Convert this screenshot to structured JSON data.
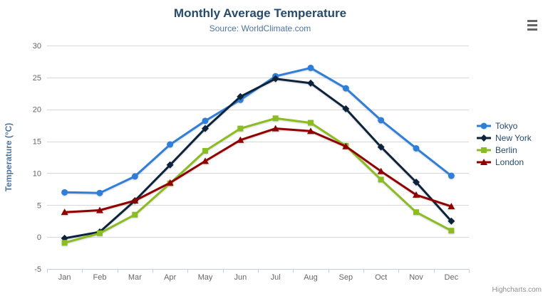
{
  "credits": "Highcharts.com",
  "icons": {
    "export_menu": "hamburger"
  },
  "chart_data": {
    "type": "line",
    "title": "Monthly Average Temperature",
    "subtitle": "Source: WorldClimate.com",
    "xlabel": "",
    "ylabel": "Temperature (°C)",
    "ylim": [
      -5,
      30
    ],
    "y_ticks": [
      -5,
      0,
      5,
      10,
      15,
      20,
      25,
      30
    ],
    "grid": true,
    "legend_position": "right",
    "categories": [
      "Jan",
      "Feb",
      "Mar",
      "Apr",
      "May",
      "Jun",
      "Jul",
      "Aug",
      "Sep",
      "Oct",
      "Nov",
      "Dec"
    ],
    "series": [
      {
        "name": "Tokyo",
        "color": "#2f7ed8",
        "marker": "circle",
        "values": [
          7.0,
          6.9,
          9.5,
          14.5,
          18.2,
          21.5,
          25.2,
          26.5,
          23.3,
          18.3,
          13.9,
          9.6
        ]
      },
      {
        "name": "New York",
        "color": "#0d233a",
        "marker": "diamond",
        "values": [
          -0.2,
          0.8,
          5.7,
          11.3,
          17.0,
          22.0,
          24.8,
          24.1,
          20.1,
          14.1,
          8.6,
          2.5
        ]
      },
      {
        "name": "Berlin",
        "color": "#8bbc21",
        "marker": "square",
        "values": [
          -0.9,
          0.6,
          3.5,
          8.4,
          13.5,
          17.0,
          18.6,
          17.9,
          14.3,
          9.0,
          3.9,
          1.0
        ]
      },
      {
        "name": "London",
        "color": "#910000",
        "marker": "triangle",
        "values": [
          3.9,
          4.2,
          5.7,
          8.5,
          11.9,
          15.2,
          17.0,
          16.6,
          14.2,
          10.3,
          6.6,
          4.8
        ]
      }
    ],
    "colors": {
      "title": "#274b6d",
      "subtitle": "#4d759e",
      "axis_title": "#4d759e",
      "tick_label": "#666666",
      "grid_line": "#d8d8d8",
      "axis_line": "#c0d0e0",
      "credits": "#909090"
    }
  }
}
